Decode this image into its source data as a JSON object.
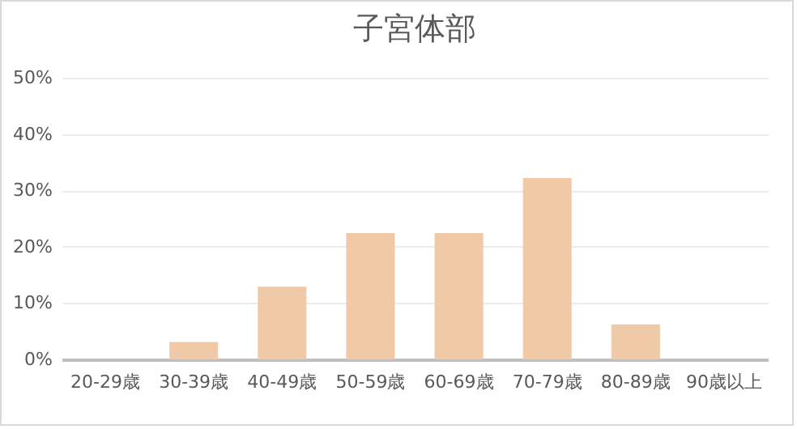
{
  "chart_data": {
    "type": "bar",
    "title": "子宮体部",
    "categories": [
      "20-29歳",
      "30-39歳",
      "40-49歳",
      "50-59歳",
      "60-69歳",
      "70-79歳",
      "80-89歳",
      "90歳以上"
    ],
    "values": [
      0,
      3.1,
      12.9,
      22.4,
      22.4,
      32.2,
      6.2,
      0
    ],
    "color": "#f0c9a6",
    "ylim": [
      0,
      50
    ],
    "yticks": [
      {
        "value": 0,
        "label": "0%"
      },
      {
        "value": 10,
        "label": "10%"
      },
      {
        "value": 20,
        "label": "20%"
      },
      {
        "value": 30,
        "label": "30%"
      },
      {
        "value": 40,
        "label": "40%"
      },
      {
        "value": 50,
        "label": "50%"
      }
    ],
    "grid": "y"
  }
}
